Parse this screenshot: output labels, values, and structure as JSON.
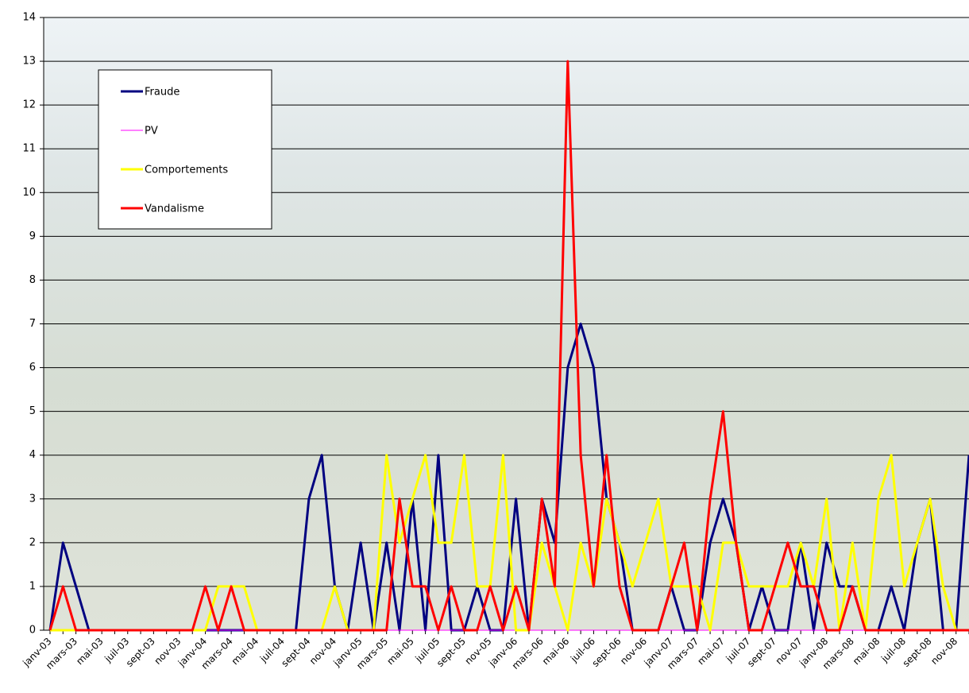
{
  "chart_data": {
    "type": "line",
    "categories": [
      "janv-03",
      null,
      "mars-03",
      null,
      "mai-03",
      null,
      "juil-03",
      null,
      "sept-03",
      null,
      "nov-03",
      null,
      "janv-04",
      null,
      "mars-04",
      null,
      "mai-04",
      null,
      "juil-04",
      null,
      "sept-04",
      null,
      "nov-04",
      null,
      "janv-05",
      null,
      "mars-05",
      null,
      "mai-05",
      null,
      "juil-05",
      null,
      "sept-05",
      null,
      "nov-05",
      null,
      "janv-06",
      null,
      "mars-06",
      null,
      "mai-06",
      null,
      "juil-06",
      null,
      "sept-06",
      null,
      "nov-06",
      null,
      "janv-07",
      null,
      "mars-07",
      null,
      "mai-07",
      null,
      "juil-07",
      null,
      "sept-07",
      null,
      "nov-07",
      null,
      "janv-08",
      null,
      "mars-08",
      null,
      "mai-08",
      null,
      "juil-08",
      null,
      "sept-08",
      null,
      "nov-08",
      null
    ],
    "series": [
      {
        "name": "Fraude",
        "color": "#000080",
        "values": [
          0,
          2,
          1,
          0,
          0,
          0,
          0,
          0,
          0,
          0,
          0,
          0,
          0,
          0,
          0,
          0,
          0,
          0,
          0,
          0,
          3,
          4,
          1,
          0,
          2,
          0,
          2,
          0,
          3,
          0,
          4,
          0,
          0,
          1,
          0,
          0,
          3,
          0,
          3,
          2,
          6,
          7,
          6,
          3,
          2,
          0,
          0,
          0,
          1,
          0,
          0,
          2,
          3,
          2,
          0,
          1,
          0,
          0,
          2,
          0,
          2,
          1,
          1,
          0,
          0,
          1,
          0,
          2,
          3,
          0,
          0,
          4
        ]
      },
      {
        "name": "PV",
        "color": "#ff00ff",
        "values": [
          0,
          0,
          0,
          0,
          0,
          0,
          0,
          0,
          0,
          0,
          0,
          0,
          0,
          0,
          0,
          0,
          0,
          0,
          0,
          0,
          0,
          0,
          0,
          0,
          0,
          0,
          0,
          0,
          0,
          0,
          0,
          0,
          0,
          0,
          0,
          0,
          0,
          0,
          0,
          0,
          0,
          0,
          0,
          0,
          0,
          0,
          0,
          0,
          0,
          0,
          0,
          0,
          0,
          0,
          0,
          0,
          0,
          0,
          0,
          0,
          0,
          0,
          0,
          0,
          0,
          0,
          0,
          0,
          0,
          0,
          0,
          0
        ]
      },
      {
        "name": "Comportements",
        "color": "#ffff00",
        "values": [
          0,
          0,
          0,
          0,
          0,
          0,
          0,
          0,
          0,
          0,
          0,
          0,
          0,
          1,
          1,
          1,
          0,
          0,
          0,
          0,
          0,
          0,
          1,
          0,
          0,
          0,
          4,
          2,
          3,
          4,
          2,
          2,
          4,
          1,
          1,
          4,
          0,
          0,
          2,
          1,
          0,
          2,
          1,
          3,
          2,
          1,
          2,
          3,
          1,
          1,
          1,
          0,
          2,
          2,
          1,
          1,
          1,
          1,
          2,
          1,
          3,
          0,
          2,
          0,
          3,
          4,
          1,
          2,
          3,
          1,
          0,
          0
        ]
      },
      {
        "name": "Vandalisme",
        "color": "#ff0000",
        "values": [
          0,
          1,
          0,
          0,
          0,
          0,
          0,
          0,
          0,
          0,
          0,
          0,
          1,
          0,
          1,
          0,
          0,
          0,
          0,
          0,
          0,
          0,
          0,
          0,
          0,
          0,
          0,
          3,
          1,
          1,
          0,
          1,
          0,
          0,
          1,
          0,
          1,
          0,
          3,
          1,
          13,
          4,
          1,
          4,
          1,
          0,
          0,
          0,
          1,
          2,
          0,
          3,
          5,
          2,
          0,
          0,
          1,
          2,
          1,
          1,
          0,
          0,
          1,
          0,
          0,
          0,
          0,
          0,
          0,
          0,
          0,
          0
        ]
      }
    ],
    "ylim": [
      0,
      14
    ],
    "yticks": [
      0,
      1,
      2,
      3,
      4,
      5,
      6,
      7,
      8,
      9,
      10,
      11,
      12,
      13,
      14
    ],
    "grid": true
  }
}
